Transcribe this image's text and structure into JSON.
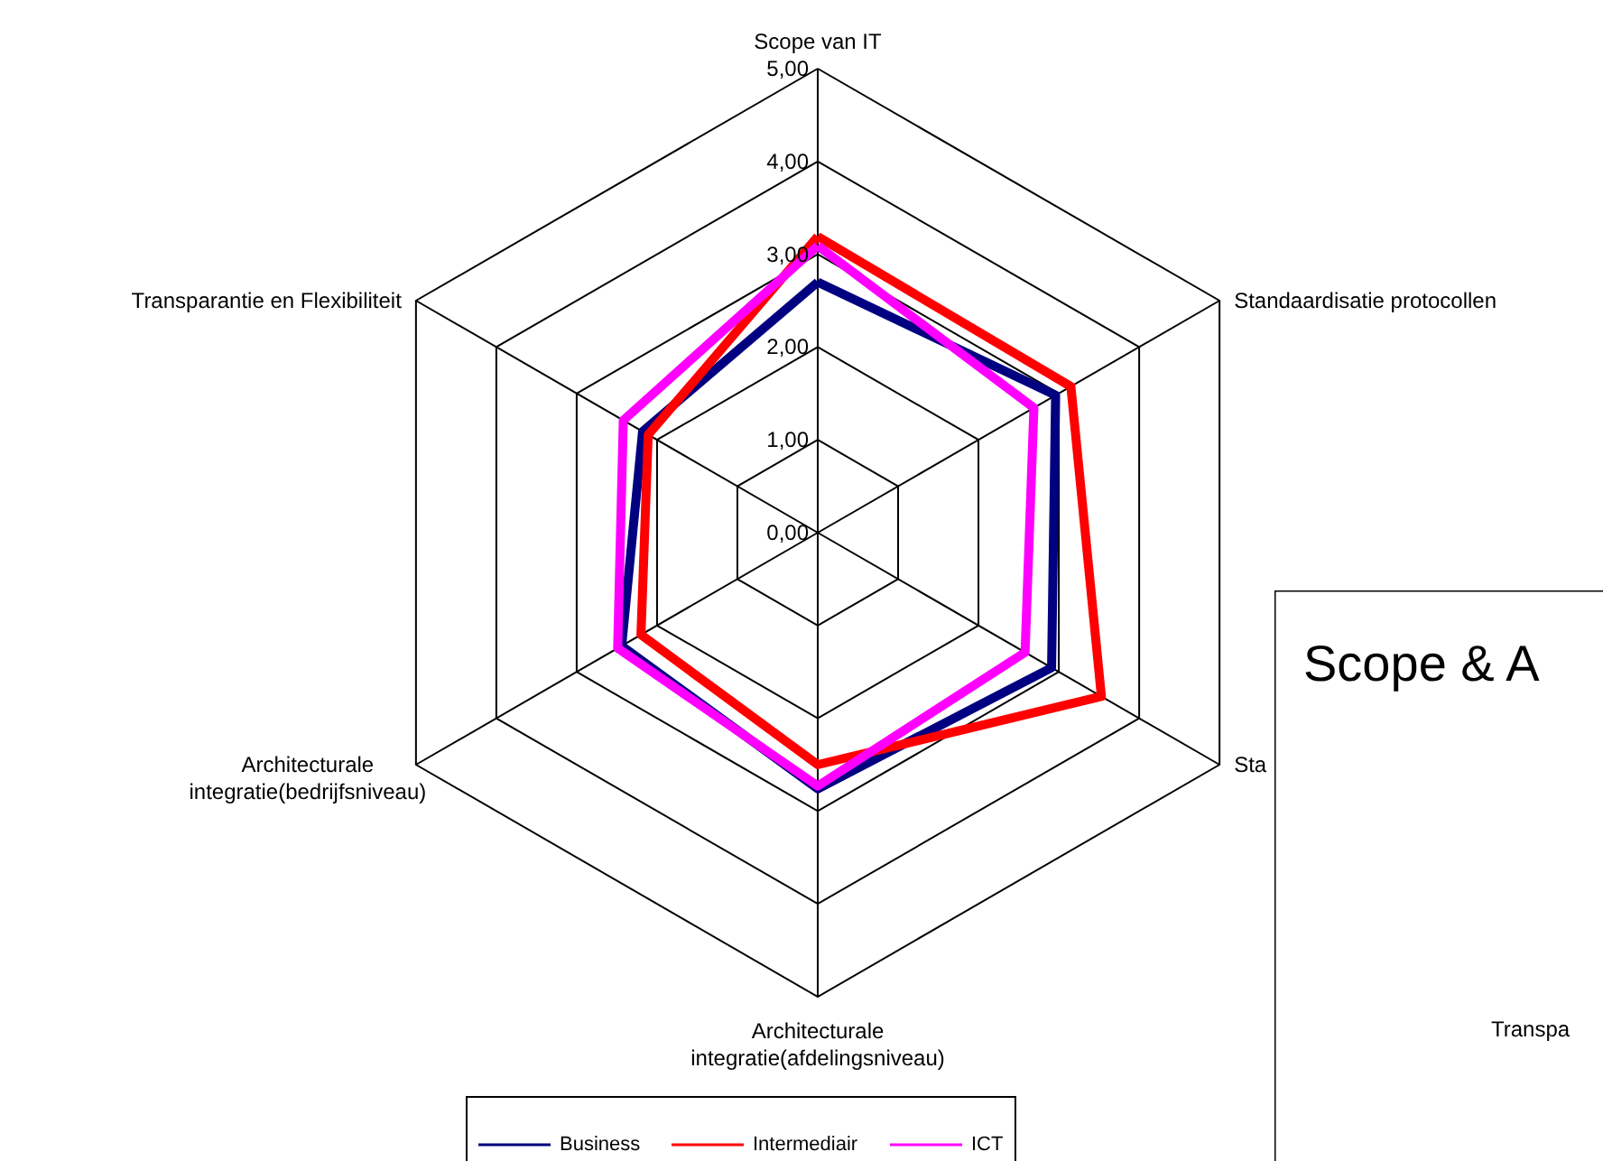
{
  "chart_data": [
    {
      "type": "radar",
      "categories": [
        "Scope van IT",
        "Standaardisatie protocollen",
        "Sta",
        "Architecturale integratie(afdelingsniveau)",
        "Architecturale integratie(bedrijfsniveau)",
        "Transparantie en Flexibiliteit"
      ],
      "ylim": [
        0,
        5
      ],
      "yticks": [
        {
          "value": 0,
          "label": "0,00"
        },
        {
          "value": 1,
          "label": "1,00"
        },
        {
          "value": 2,
          "label": "2,00"
        },
        {
          "value": 3,
          "label": "3,00"
        },
        {
          "value": 4,
          "label": "4,00"
        },
        {
          "value": 5,
          "label": "5,00"
        }
      ],
      "grid": true,
      "legend": "bottom",
      "series": [
        {
          "name": "Business",
          "color": "#000080",
          "values": [
            2.7,
            2.96,
            2.91,
            2.76,
            2.44,
            2.18
          ]
        },
        {
          "name": "Intermediair",
          "color": "#ff0000",
          "values": [
            3.19,
            3.15,
            3.53,
            2.5,
            2.2,
            2.11
          ]
        },
        {
          "name": "ICT",
          "color": "#ff00ff",
          "values": [
            3.09,
            2.69,
            2.58,
            2.73,
            2.49,
            2.42
          ]
        }
      ]
    },
    {
      "type": "other",
      "title": "Scope & A",
      "annotations": [
        "Transpa"
      ]
    }
  ]
}
